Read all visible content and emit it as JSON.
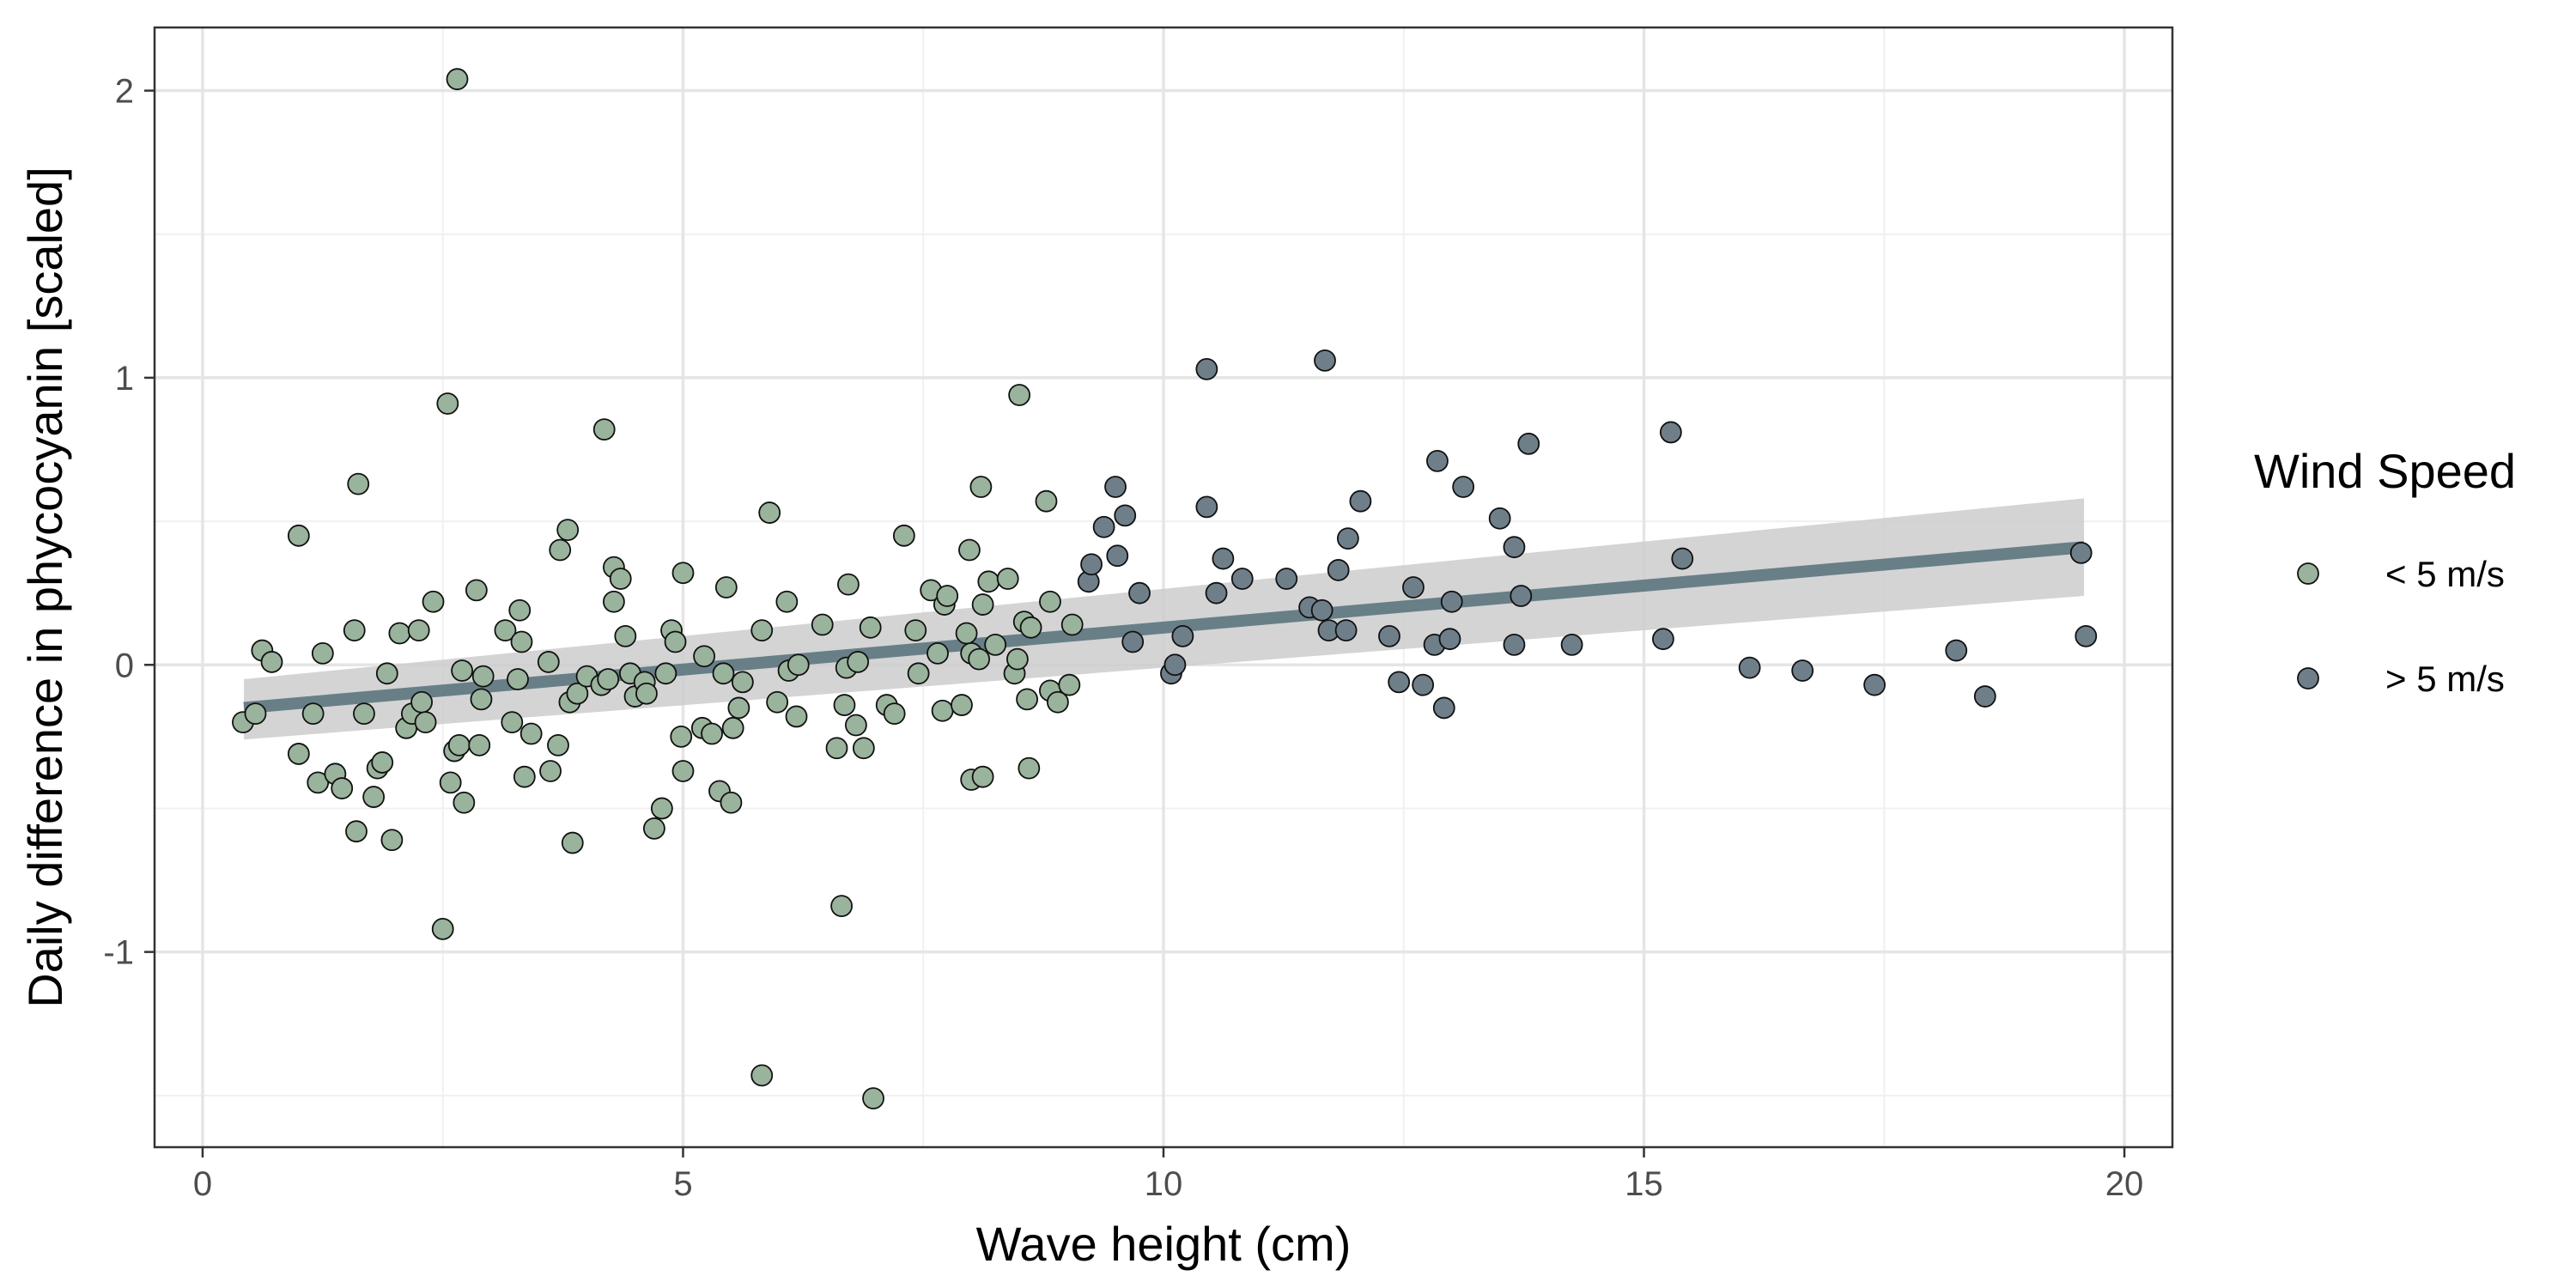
{
  "chart_data": {
    "type": "scatter",
    "title": "",
    "xlabel": "Wave height (cm)",
    "ylabel": "Daily difference in phycocyanin [scaled]",
    "xlim": [
      -0.5,
      20.5
    ],
    "ylim": [
      -1.68,
      2.22
    ],
    "x_ticks": [
      0,
      5,
      10,
      15,
      20
    ],
    "y_ticks": [
      -1,
      0,
      1,
      2
    ],
    "grid": true,
    "legend": {
      "title": "Wind Speed",
      "position": "right"
    },
    "trend": {
      "x": [
        0.43,
        19.58
      ],
      "y": [
        -0.15,
        0.41
      ],
      "ci_low": [
        -0.26,
        0.24
      ],
      "ci_high": [
        -0.05,
        0.58
      ],
      "color": "#687f88",
      "band_color": "#cccccc"
    },
    "series": [
      {
        "name": "< 5 m/s",
        "color": "#9ab39c",
        "points": [
          [
            0.42,
            -0.2
          ],
          [
            0.55,
            -0.17
          ],
          [
            0.62,
            0.05
          ],
          [
            0.72,
            0.01
          ],
          [
            1.0,
            0.45
          ],
          [
            1.0,
            -0.31
          ],
          [
            1.15,
            -0.17
          ],
          [
            1.2,
            -0.41
          ],
          [
            1.25,
            0.04
          ],
          [
            1.38,
            -0.38
          ],
          [
            1.45,
            -0.43
          ],
          [
            1.58,
            0.12
          ],
          [
            1.6,
            -0.58
          ],
          [
            1.62,
            0.63
          ],
          [
            1.68,
            -0.17
          ],
          [
            1.78,
            -0.46
          ],
          [
            1.82,
            -0.36
          ],
          [
            1.87,
            -0.34
          ],
          [
            1.92,
            -0.03
          ],
          [
            1.97,
            -0.61
          ],
          [
            2.05,
            0.11
          ],
          [
            2.12,
            -0.22
          ],
          [
            2.18,
            -0.17
          ],
          [
            2.25,
            0.12
          ],
          [
            2.28,
            -0.13
          ],
          [
            2.32,
            -0.2
          ],
          [
            2.4,
            0.22
          ],
          [
            2.5,
            -0.92
          ],
          [
            2.55,
            0.91
          ],
          [
            2.58,
            -0.41
          ],
          [
            2.65,
            2.04
          ],
          [
            2.62,
            -0.3
          ],
          [
            2.67,
            -0.28
          ],
          [
            2.7,
            -0.02
          ],
          [
            2.72,
            -0.48
          ],
          [
            2.85,
            0.26
          ],
          [
            2.88,
            -0.28
          ],
          [
            2.9,
            -0.12
          ],
          [
            2.92,
            -0.04
          ],
          [
            3.15,
            0.12
          ],
          [
            3.22,
            -0.2
          ],
          [
            3.28,
            -0.05
          ],
          [
            3.3,
            0.19
          ],
          [
            3.32,
            0.08
          ],
          [
            3.35,
            -0.39
          ],
          [
            3.42,
            -0.24
          ],
          [
            3.6,
            0.01
          ],
          [
            3.62,
            -0.37
          ],
          [
            3.7,
            -0.28
          ],
          [
            3.72,
            0.4
          ],
          [
            3.8,
            0.47
          ],
          [
            3.82,
            -0.13
          ],
          [
            3.85,
            -0.62
          ],
          [
            3.9,
            -0.1
          ],
          [
            4.0,
            -0.04
          ],
          [
            4.15,
            -0.07
          ],
          [
            4.18,
            0.82
          ],
          [
            4.22,
            -0.05
          ],
          [
            4.28,
            0.34
          ],
          [
            4.28,
            0.22
          ],
          [
            4.35,
            0.3
          ],
          [
            4.4,
            0.1
          ],
          [
            4.45,
            -0.03
          ],
          [
            4.5,
            -0.11
          ],
          [
            4.6,
            -0.06
          ],
          [
            4.62,
            -0.1
          ],
          [
            4.7,
            -0.57
          ],
          [
            4.78,
            -0.5
          ],
          [
            4.82,
            -0.03
          ],
          [
            4.88,
            0.12
          ],
          [
            4.92,
            0.08
          ],
          [
            4.98,
            -0.25
          ],
          [
            5.0,
            0.32
          ],
          [
            5.0,
            -0.37
          ],
          [
            5.2,
            -0.22
          ],
          [
            5.22,
            0.03
          ],
          [
            5.3,
            -0.24
          ],
          [
            5.38,
            -0.44
          ],
          [
            5.42,
            -0.03
          ],
          [
            5.45,
            0.27
          ],
          [
            5.5,
            -0.48
          ],
          [
            5.52,
            -0.22
          ],
          [
            5.58,
            -0.15
          ],
          [
            5.62,
            -0.06
          ],
          [
            5.82,
            -1.43
          ],
          [
            5.82,
            0.12
          ],
          [
            5.9,
            0.53
          ],
          [
            5.98,
            -0.13
          ],
          [
            6.08,
            0.22
          ],
          [
            6.1,
            -0.02
          ],
          [
            6.18,
            -0.18
          ],
          [
            6.2,
            0.0
          ],
          [
            6.45,
            0.14
          ],
          [
            6.6,
            -0.29
          ],
          [
            6.65,
            -0.84
          ],
          [
            6.68,
            -0.14
          ],
          [
            6.7,
            -0.01
          ],
          [
            6.72,
            0.28
          ],
          [
            6.8,
            -0.21
          ],
          [
            6.82,
            0.01
          ],
          [
            6.88,
            -0.29
          ],
          [
            6.95,
            0.13
          ],
          [
            6.98,
            -1.51
          ],
          [
            7.12,
            -0.14
          ],
          [
            7.2,
            -0.17
          ],
          [
            7.3,
            0.45
          ],
          [
            7.42,
            0.12
          ],
          [
            7.45,
            -0.03
          ],
          [
            7.58,
            0.26
          ],
          [
            7.65,
            0.04
          ],
          [
            7.7,
            -0.16
          ],
          [
            7.72,
            0.21
          ],
          [
            7.75,
            0.24
          ],
          [
            7.9,
            -0.14
          ],
          [
            7.95,
            0.11
          ],
          [
            7.98,
            0.4
          ],
          [
            8.0,
            0.04
          ],
          [
            8.0,
            -0.4
          ],
          [
            8.08,
            0.02
          ],
          [
            8.1,
            0.62
          ],
          [
            8.12,
            0.21
          ],
          [
            8.12,
            -0.39
          ],
          [
            8.18,
            0.29
          ],
          [
            8.25,
            0.07
          ],
          [
            8.38,
            0.3
          ],
          [
            8.45,
            -0.03
          ],
          [
            8.48,
            0.02
          ],
          [
            8.5,
            0.94
          ],
          [
            8.55,
            0.15
          ],
          [
            8.58,
            -0.12
          ],
          [
            8.6,
            -0.36
          ],
          [
            8.62,
            0.13
          ],
          [
            8.78,
            0.57
          ],
          [
            8.82,
            0.22
          ],
          [
            8.82,
            -0.09
          ],
          [
            8.9,
            -0.13
          ],
          [
            9.02,
            -0.07
          ],
          [
            9.05,
            0.14
          ]
        ]
      },
      {
        "name": "> 5 m/s",
        "color": "#6f7f8a",
        "points": [
          [
            9.22,
            0.29
          ],
          [
            9.25,
            0.35
          ],
          [
            9.38,
            0.48
          ],
          [
            9.5,
            0.62
          ],
          [
            9.52,
            0.38
          ],
          [
            9.6,
            0.52
          ],
          [
            9.68,
            0.08
          ],
          [
            9.75,
            0.25
          ],
          [
            10.08,
            -0.03
          ],
          [
            10.12,
            0.0
          ],
          [
            10.2,
            0.1
          ],
          [
            10.45,
            1.03
          ],
          [
            10.45,
            0.55
          ],
          [
            10.55,
            0.25
          ],
          [
            10.62,
            0.37
          ],
          [
            10.82,
            0.3
          ],
          [
            11.28,
            0.3
          ],
          [
            11.52,
            0.2
          ],
          [
            11.65,
            0.19
          ],
          [
            11.68,
            1.06
          ],
          [
            11.72,
            0.12
          ],
          [
            11.82,
            0.33
          ],
          [
            11.9,
            0.12
          ],
          [
            11.92,
            0.44
          ],
          [
            12.05,
            0.57
          ],
          [
            12.35,
            0.1
          ],
          [
            12.45,
            -0.06
          ],
          [
            12.6,
            0.27
          ],
          [
            12.7,
            -0.07
          ],
          [
            12.82,
            0.07
          ],
          [
            12.85,
            0.71
          ],
          [
            12.92,
            -0.15
          ],
          [
            12.98,
            0.09
          ],
          [
            13.0,
            0.22
          ],
          [
            13.12,
            0.62
          ],
          [
            13.5,
            0.51
          ],
          [
            13.65,
            0.41
          ],
          [
            13.65,
            0.07
          ],
          [
            13.72,
            0.24
          ],
          [
            13.8,
            0.77
          ],
          [
            14.25,
            0.07
          ],
          [
            15.2,
            0.09
          ],
          [
            15.28,
            0.81
          ],
          [
            15.4,
            0.37
          ],
          [
            16.1,
            -0.01
          ],
          [
            16.65,
            -0.02
          ],
          [
            17.4,
            -0.07
          ],
          [
            18.25,
            0.05
          ],
          [
            18.55,
            -0.11
          ],
          [
            19.55,
            0.39
          ],
          [
            19.6,
            0.1
          ]
        ]
      }
    ]
  }
}
